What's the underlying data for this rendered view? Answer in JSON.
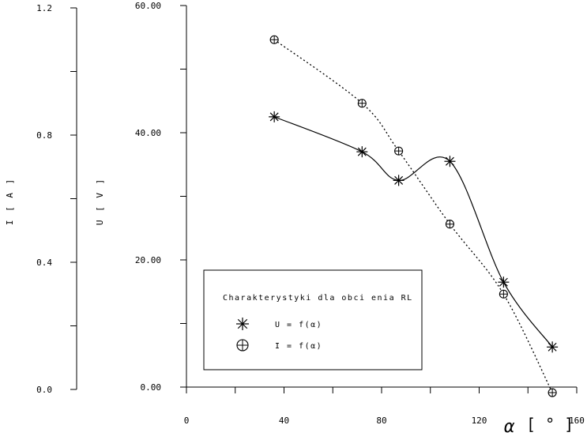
{
  "chart_data": {
    "type": "line",
    "title": "",
    "legend": {
      "title": "Charakterystyki dla obci   enia RL",
      "placement": "bottom-left",
      "entries": [
        {
          "label": "U = f(α)",
          "marker": "asterisk",
          "line": "solid"
        },
        {
          "label": "I = f(α)",
          "marker": "circle-plus",
          "line": "dotted"
        }
      ]
    },
    "x_axis": {
      "label_symbol": "α",
      "label_unit": "[ ° ]",
      "range": [
        0,
        160
      ],
      "ticks": [
        0,
        40,
        80,
        120,
        160
      ],
      "tick_labels": [
        "0",
        "40",
        "80",
        "120",
        "160"
      ]
    },
    "y_axis_left": {
      "label": "I [ A ]",
      "range": [
        0,
        1.2
      ],
      "ticks": [
        0,
        0.4,
        0.8,
        1.2
      ],
      "tick_labels": [
        "0.0",
        "0.4",
        "0.8",
        "1.2"
      ]
    },
    "y_axis_right": {
      "label": "U [ V ]",
      "range": [
        0,
        60
      ],
      "ticks": [
        0,
        20,
        40,
        60
      ],
      "tick_labels": [
        "0.00",
        "20.00",
        "40.00",
        "60.00"
      ]
    },
    "series": [
      {
        "name": "U = f(α)",
        "axis": "U",
        "x": [
          36,
          72,
          87,
          108,
          130,
          150
        ],
        "values": [
          42.5,
          37.0,
          32.5,
          35.5,
          16.5,
          6.3
        ]
      },
      {
        "name": "I = f(α)",
        "axis": "I",
        "x": [
          36,
          72,
          87,
          108,
          130,
          150
        ],
        "values": [
          1.1,
          0.9,
          0.75,
          0.52,
          0.3,
          -0.01
        ]
      }
    ],
    "grid": false
  }
}
